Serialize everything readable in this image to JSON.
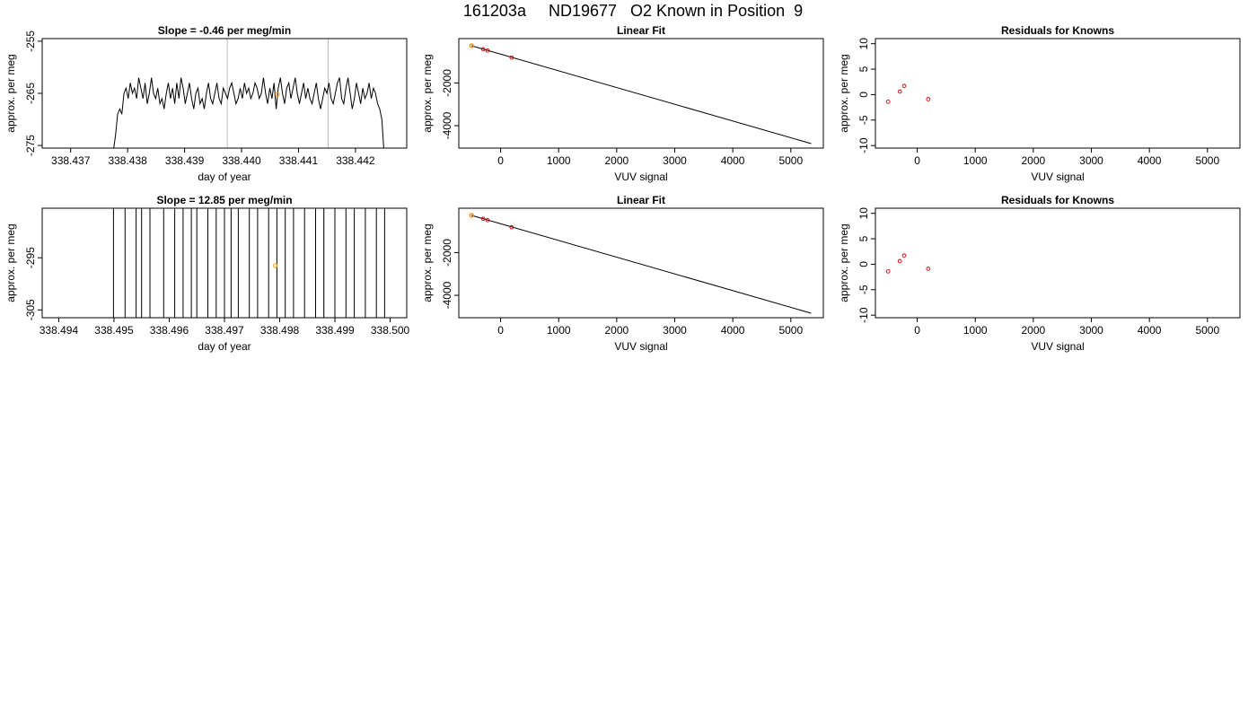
{
  "page_title": "161203a     ND19677   O2 Known in Position  9",
  "chart_data": [
    {
      "type": "line",
      "title": "Slope =  -0.46  per meg/min",
      "xlabel": "day of year",
      "ylabel": "approx. per meg",
      "xlim": [
        338.4365,
        338.4429
      ],
      "ylim": [
        -275.5,
        -254.5
      ],
      "xticks": [
        338.437,
        338.438,
        338.439,
        338.44,
        338.441,
        338.442
      ],
      "xtick_labels": [
        "338.437",
        "338.438",
        "338.439",
        "338.440",
        "338.441",
        "338.442"
      ],
      "yticks": [
        -275,
        -265,
        -255
      ],
      "ytick_labels": [
        "-275",
        "-265",
        "-255"
      ],
      "vlines": [
        338.43975,
        338.44152
      ],
      "series": [
        {
          "x_start": 338.43775,
          "x_end": 338.4425,
          "values": [
            -276,
            -273,
            -269,
            -268,
            -269,
            -265,
            -264,
            -266,
            -263,
            -265,
            -264,
            -266,
            -262,
            -264,
            -266,
            -263,
            -267,
            -265,
            -262,
            -265,
            -266,
            -264,
            -267,
            -266,
            -268,
            -265,
            -263,
            -266,
            -264,
            -267,
            -263,
            -266,
            -262,
            -264,
            -267,
            -265,
            -263,
            -266,
            -268,
            -265,
            -264,
            -267,
            -266,
            -268,
            -265,
            -263,
            -266,
            -267,
            -265,
            -263,
            -266,
            -267,
            -264,
            -265,
            -266,
            -264,
            -263,
            -265,
            -267,
            -266,
            -264,
            -266,
            -263,
            -265,
            -264,
            -266,
            -265,
            -263,
            -264,
            -266,
            -265,
            -262,
            -265,
            -267,
            -264,
            -266,
            -263,
            -268,
            -264,
            -262,
            -265,
            -267,
            -264,
            -263,
            -266,
            -264,
            -262,
            -265,
            -267,
            -265,
            -263,
            -266,
            -264,
            -266,
            -267,
            -265,
            -263,
            -266,
            -268,
            -266,
            -264,
            -265,
            -263,
            -266,
            -267,
            -265,
            -263,
            -262,
            -266,
            -267,
            -264,
            -262,
            -265,
            -268,
            -266,
            -263,
            -265,
            -267,
            -264,
            -266,
            -265,
            -263,
            -266,
            -264,
            -265,
            -267,
            -268,
            -270,
            -276
          ]
        }
      ],
      "highlight_point": {
        "x": 338.44063,
        "y": -265.2
      }
    },
    {
      "type": "scatter",
      "title": "Linear Fit",
      "xlabel": "VUV signal",
      "ylabel": "approx. per meg",
      "xlim": [
        -720,
        5560
      ],
      "ylim": [
        -5050,
        80
      ],
      "xticks": [
        0,
        1000,
        2000,
        3000,
        4000,
        5000
      ],
      "xtick_labels": [
        "0",
        "1000",
        "2000",
        "3000",
        "4000",
        "5000"
      ],
      "yticks": [
        -4000,
        -2000
      ],
      "ytick_labels": [
        "-4000",
        "-2000"
      ],
      "fit_line": [
        [
          -500,
          -255
        ],
        [
          5350,
          -4838
        ]
      ],
      "points": [
        [
          -500,
          -255
        ],
        [
          -300,
          -420
        ],
        [
          -225,
          -480
        ],
        [
          190,
          -810
        ]
      ],
      "highlight_point": [
        -500,
        -255
      ]
    },
    {
      "type": "scatter",
      "title": "Residuals for Knowns",
      "xlabel": "VUV signal",
      "ylabel": "approx. per meg",
      "xlim": [
        -720,
        5560
      ],
      "ylim": [
        -10.5,
        11
      ],
      "xticks": [
        0,
        1000,
        2000,
        3000,
        4000,
        5000
      ],
      "xtick_labels": [
        "0",
        "1000",
        "2000",
        "3000",
        "4000",
        "5000"
      ],
      "yticks": [
        -10,
        -5,
        0,
        5,
        10
      ],
      "ytick_labels": [
        "-10",
        "-5",
        "0",
        "5",
        "10"
      ],
      "points": [
        [
          -500,
          -1.4
        ],
        [
          -300,
          0.6
        ],
        [
          -225,
          1.7
        ],
        [
          190,
          -0.9
        ]
      ]
    },
    {
      "type": "line",
      "title": "Slope =  12.85  per meg/min",
      "xlabel": "day of year",
      "ylabel": "approx. per meg",
      "xlim": [
        338.4937,
        338.5003
      ],
      "ylim": [
        -306.5,
        -285.5
      ],
      "xticks": [
        338.494,
        338.495,
        338.496,
        338.497,
        338.498,
        338.499,
        338.5
      ],
      "xtick_labels": [
        "338.494",
        "338.495",
        "338.496",
        "338.497",
        "338.498",
        "338.499",
        "338.500"
      ],
      "yticks": [
        -305,
        -295
      ],
      "ytick_labels": [
        "-305",
        "-295"
      ],
      "vlines": [
        338.49712,
        338.4988
      ],
      "series": [
        {
          "x": [
            338.49499,
            338.49499,
            338.4952,
            338.4952,
            338.4954,
            338.4954,
            338.4955,
            338.4955,
            338.49565,
            338.49565,
            338.4959,
            338.4959,
            338.4961,
            338.4961,
            338.49625,
            338.49625,
            338.4964,
            338.4964,
            338.4965,
            338.4965,
            338.4967,
            338.4967,
            338.49685,
            338.49685,
            338.497,
            338.497,
            338.49712,
            338.49712,
            338.49725,
            338.49725,
            338.49745,
            338.49745,
            338.4976,
            338.4976,
            338.4978,
            338.4978,
            338.49795,
            338.49795,
            338.4981,
            338.4981,
            338.49825,
            338.49825,
            338.49845,
            338.49845,
            338.49865,
            338.49865,
            338.4988,
            338.4988,
            338.499,
            338.499,
            338.4992,
            338.4992,
            338.49935,
            338.49935,
            338.49955,
            338.49955,
            338.49975,
            338.49975,
            338.4999,
            338.4999
          ],
          "y": [
            -315,
            -280,
            -280,
            -315,
            -315,
            -280,
            -280,
            -315,
            -315,
            -280,
            -280,
            -315,
            -315,
            -280,
            -280,
            -315,
            -315,
            -280,
            -280,
            -315,
            -315,
            -280,
            -280,
            -315,
            -315,
            -280,
            -280,
            -315,
            -315,
            -280,
            -280,
            -315,
            -315,
            -280,
            -280,
            -315,
            -315,
            -280,
            -280,
            -315,
            -315,
            -280,
            -280,
            -315,
            -315,
            -280,
            -280,
            -315,
            -315,
            -280,
            -280,
            -315,
            -315,
            -280,
            -280,
            -315,
            -315,
            -280,
            -280,
            -315
          ]
        }
      ],
      "highlight_point": {
        "x": 338.49792,
        "y": -296.5
      }
    },
    {
      "type": "scatter",
      "title": "Linear Fit",
      "xlabel": "VUV signal",
      "ylabel": "approx. per meg",
      "xlim": [
        -720,
        5560
      ],
      "ylim": [
        -5050,
        80
      ],
      "xticks": [
        0,
        1000,
        2000,
        3000,
        4000,
        5000
      ],
      "xtick_labels": [
        "0",
        "1000",
        "2000",
        "3000",
        "4000",
        "5000"
      ],
      "yticks": [
        -4000,
        -2000
      ],
      "ytick_labels": [
        "-4000",
        "-2000"
      ],
      "fit_line": [
        [
          -500,
          -255
        ],
        [
          5350,
          -4838
        ]
      ],
      "points": [
        [
          -500,
          -255
        ],
        [
          -300,
          -420
        ],
        [
          -225,
          -480
        ],
        [
          190,
          -810
        ]
      ],
      "highlight_point": [
        -500,
        -255
      ]
    },
    {
      "type": "scatter",
      "title": "Residuals for Knowns",
      "xlabel": "VUV signal",
      "ylabel": "approx. per meg",
      "xlim": [
        -720,
        5560
      ],
      "ylim": [
        -10.5,
        11
      ],
      "xticks": [
        0,
        1000,
        2000,
        3000,
        4000,
        5000
      ],
      "xtick_labels": [
        "0",
        "1000",
        "2000",
        "3000",
        "4000",
        "5000"
      ],
      "yticks": [
        -10,
        -5,
        0,
        5,
        10
      ],
      "ytick_labels": [
        "-10",
        "-5",
        "0",
        "5",
        "10"
      ],
      "points": [
        [
          -500,
          -1.4
        ],
        [
          -300,
          0.6
        ],
        [
          -225,
          1.7
        ],
        [
          190,
          -0.9
        ]
      ]
    }
  ],
  "colors": {
    "line": "#000000",
    "vline": "#bebebe",
    "point": "#cc0000",
    "highlight": "#ffa500"
  }
}
